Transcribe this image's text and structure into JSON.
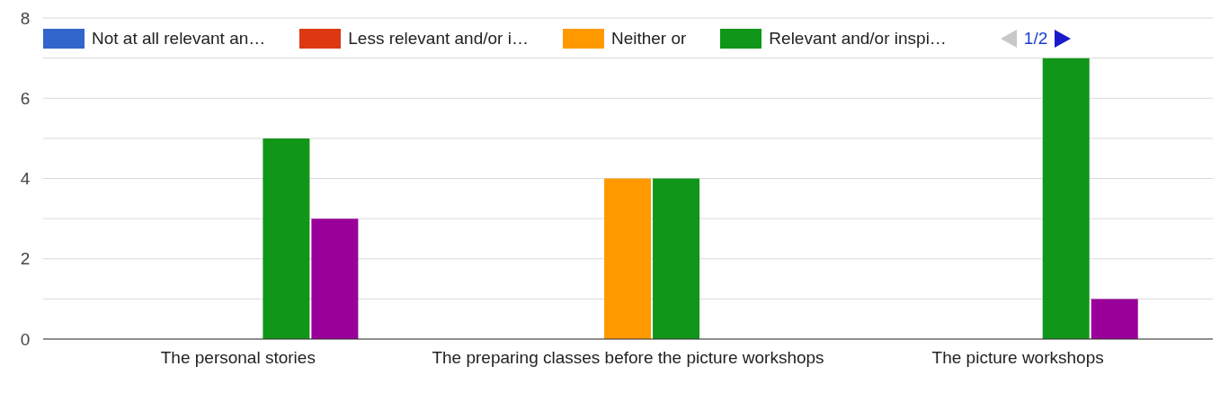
{
  "chart_data": {
    "type": "bar",
    "categories": [
      "The personal stories",
      "The preparing classes before the picture workshops",
      "The picture workshops"
    ],
    "series": [
      {
        "name": "Not at all relevant an…",
        "color": "#3366cc",
        "values": [
          0,
          0,
          0
        ]
      },
      {
        "name": "Less relevant and/or i…",
        "color": "#dc3912",
        "values": [
          0,
          0,
          0
        ]
      },
      {
        "name": "Neither or",
        "color": "#ff9900",
        "values": [
          0,
          4,
          0
        ]
      },
      {
        "name": "Relevant and/or inspi…",
        "color": "#109618",
        "values": [
          5,
          4,
          7
        ]
      },
      {
        "color": "#990099",
        "values": [
          3,
          0,
          1
        ]
      }
    ],
    "ylim": [
      0,
      8
    ],
    "yticks": [
      0,
      {
        "value": 1,
        "label": null
      },
      2,
      {
        "value": 3,
        "label": null
      },
      4,
      {
        "value": 5,
        "label": null
      },
      6,
      {
        "value": 7,
        "label": null
      },
      8
    ],
    "grid": "y",
    "legend": "top",
    "annotations": [
      "1/2"
    ]
  }
}
